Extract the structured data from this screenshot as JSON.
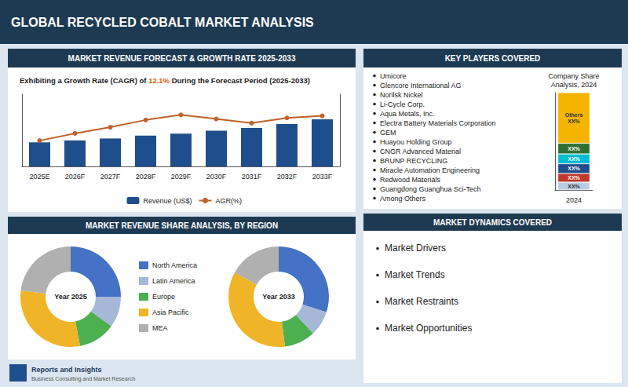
{
  "title": "GLOBAL RECYCLED COBALT MARKET ANALYSIS",
  "annotations": [
    "Reports and Insights",
    "Business Consulting and Market Research"
  ],
  "chart_data": [
    {
      "type": "bar",
      "title": "MARKET REVENUE FORECAST & GROWTH RATE 2025-2033",
      "subtitle": "Exhibiting a Growth Rate (CAGR) of 12.1% During the Forecast Period (2025-2033)",
      "categories": [
        "2025E",
        "2026F",
        "2027F",
        "2028F",
        "2029F",
        "2030F",
        "2031F",
        "2032F",
        "2033F"
      ],
      "series": [
        {
          "name": "Revenue (US$)",
          "type": "bar",
          "color": "#1f4e8c",
          "values": [
            2.5,
            2.7,
            2.9,
            3.2,
            3.4,
            3.7,
            4.0,
            4.4,
            4.9
          ]
        },
        {
          "name": "AGR(%)",
          "type": "line",
          "axis": "y2",
          "color": "#c0612b",
          "marker": "circle",
          "values": [
            10.5,
            11.2,
            11.8,
            12.5,
            13.0,
            12.6,
            12.2,
            12.7,
            12.9
          ]
        }
      ],
      "ylim": [
        0,
        7.5
      ],
      "y2lim": [
        8,
        15
      ],
      "tick_labels": "x",
      "grid": false,
      "legend": "bottom"
    },
    {
      "type": "donut",
      "title": "MARKET REVENUE SHARE ANALYSIS, BY REGION",
      "categories": [
        "North America",
        "Latin America",
        "Europe",
        "Asia Pacific",
        "MEA"
      ],
      "colors": [
        "#4472c4",
        "#a5b8d8",
        "#4caf50",
        "#f0b429",
        "#b0b0b0"
      ],
      "series": [
        {
          "name": "Year 2025",
          "values": [
            25,
            10,
            12,
            30,
            23
          ]
        },
        {
          "name": "Year 2033",
          "values": [
            30,
            8,
            10,
            35,
            17
          ]
        }
      ],
      "legend": "center"
    },
    {
      "type": "bar",
      "stacked": true,
      "title": "KEY PLAYERS COVERED",
      "subtitle": "Company Share\nAnalysis, 2024",
      "annotations": [
        "Umicore",
        "Glencore International AG",
        "Norilsk Nickel",
        "Li-Cycle Corp.",
        "Aqua Metals, Inc.",
        "Electra Battery Materials Corporation",
        "GEM",
        "Huayou Holding Group",
        "CNGR Advanced Material",
        "BRUNP RECYCLING",
        "Miracle Automation Engineering",
        "Redwood Materials",
        "Guangdong Guanghua Sci-Tech",
        "Among Others"
      ],
      "categories": [
        "2024"
      ],
      "series": [
        {
          "color": "#b8cce4",
          "values": [
            0.08
          ],
          "value_labels": [
            "XX%"
          ]
        },
        {
          "color": "#c0392b",
          "values": [
            0.09
          ],
          "value_labels": [
            "XX%"
          ]
        },
        {
          "color": "#1f4e8c",
          "values": [
            0.1
          ],
          "value_labels": [
            "XX%"
          ]
        },
        {
          "color": "#00bcd4",
          "values": [
            0.1
          ],
          "value_labels": [
            "XX%"
          ]
        },
        {
          "color": "#2e7031",
          "values": [
            0.11
          ],
          "value_labels": [
            "XX%"
          ]
        },
        {
          "color": "#f4b400",
          "values": [
            0.52
          ],
          "value_labels": [
            "Others\nXX%"
          ]
        }
      ],
      "ylim": [
        0,
        1
      ],
      "tick_labels": "x",
      "data_labels": true,
      "grid": false
    },
    {
      "type": "list",
      "title": "MARKET DYNAMICS COVERED",
      "annotations": [
        "Market Drivers",
        "Market Trends",
        "Market Restraints",
        "Market Opportunities"
      ]
    }
  ]
}
